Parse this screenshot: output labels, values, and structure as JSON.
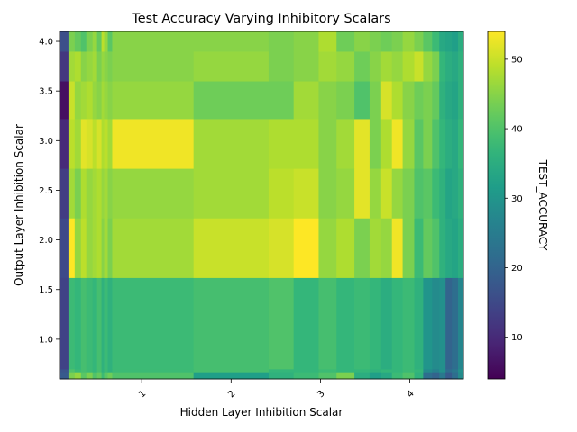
{
  "chart_data": {
    "type": "heatmap",
    "title": "Test Accuracy Varying Inhibitory Scalars",
    "xlabel": "Hidden Layer Inhibition Scalar",
    "ylabel": "Output Layer Inhibition Scalar",
    "colorbar_label": "TEST_ACCURACY",
    "colormap": "viridis",
    "xlim": [
      0.08,
      4.6
    ],
    "ylim": [
      0.6,
      4.1
    ],
    "clim": [
      4,
      54
    ],
    "x_ticks": [
      1,
      2,
      3,
      4
    ],
    "x_tick_labels": [
      "1",
      "2",
      "3",
      "4"
    ],
    "x_tick_rotation": 45,
    "y_ticks": [
      1.0,
      1.5,
      2.0,
      2.5,
      3.0,
      3.5,
      4.0
    ],
    "y_tick_labels": [
      "1.0",
      "1.5",
      "2.0",
      "2.5",
      "3.0",
      "3.5",
      "4.0"
    ],
    "colorbar_ticks": [
      10,
      20,
      30,
      40,
      50
    ],
    "colorbar_tick_labels": [
      "10",
      "20",
      "30",
      "40",
      "50"
    ],
    "x_edges": [
      0.08,
      0.18,
      0.25,
      0.32,
      0.38,
      0.45,
      0.5,
      0.55,
      0.58,
      0.62,
      0.67,
      1.58,
      2.42,
      2.7,
      2.98,
      3.18,
      3.38,
      3.55,
      3.68,
      3.8,
      3.92,
      4.05,
      4.15,
      4.25,
      4.33,
      4.4,
      4.47,
      4.54,
      4.6
    ],
    "y_edges": [
      0.6,
      0.67,
      0.7,
      1.62,
      2.22,
      2.72,
      3.22,
      3.6,
      3.9,
      4.1
    ],
    "values": [
      [
        18,
        44,
        46,
        41,
        44,
        40,
        42,
        38,
        41,
        43,
        40,
        32,
        36,
        38,
        40,
        44,
        35,
        32,
        34,
        38,
        40,
        36,
        22,
        20,
        24,
        18,
        22,
        28
      ],
      [
        17,
        40,
        38,
        39,
        38,
        37,
        39,
        36,
        38,
        36,
        38,
        39,
        37,
        37,
        38,
        37,
        37,
        36,
        37,
        37,
        38,
        37,
        28,
        26,
        29,
        22,
        24,
        29
      ],
      [
        14,
        38,
        37,
        39,
        38,
        37,
        39,
        36,
        38,
        36,
        38,
        39,
        40,
        37,
        39,
        37,
        38,
        37,
        35,
        37,
        38,
        36,
        30,
        28,
        29,
        20,
        22,
        27
      ],
      [
        15,
        54,
        46,
        49,
        46,
        47,
        48,
        45,
        47,
        44,
        47,
        50,
        51,
        54,
        46,
        48,
        44,
        47,
        46,
        53,
        44,
        38,
        42,
        40,
        36,
        34,
        33,
        35
      ],
      [
        13,
        47,
        44,
        48,
        46,
        47,
        48,
        46,
        47,
        45,
        46,
        47,
        49,
        50,
        45,
        46,
        52,
        46,
        50,
        46,
        44,
        40,
        41,
        38,
        36,
        33,
        34,
        36
      ],
      [
        10,
        49,
        47,
        52,
        51,
        49,
        51,
        48,
        49,
        47,
        53,
        47,
        48,
        48,
        45,
        47,
        52,
        44,
        48,
        53,
        46,
        41,
        44,
        40,
        37,
        35,
        34,
        37
      ],
      [
        6,
        50,
        46,
        47,
        48,
        46,
        45,
        47,
        46,
        45,
        46,
        43,
        43,
        47,
        45,
        44,
        40,
        44,
        51,
        48,
        45,
        43,
        44,
        42,
        36,
        34,
        33,
        36
      ],
      [
        12,
        47,
        48,
        45,
        46,
        47,
        44,
        46,
        45,
        44,
        45,
        46,
        44,
        45,
        47,
        46,
        43,
        45,
        47,
        46,
        48,
        50,
        46,
        44,
        37,
        35,
        34,
        36
      ],
      [
        16,
        44,
        42,
        40,
        44,
        46,
        42,
        49,
        46,
        41,
        45,
        45,
        44,
        45,
        48,
        43,
        45,
        44,
        43,
        44,
        46,
        44,
        41,
        38,
        34,
        33,
        32,
        35
      ]
    ]
  }
}
